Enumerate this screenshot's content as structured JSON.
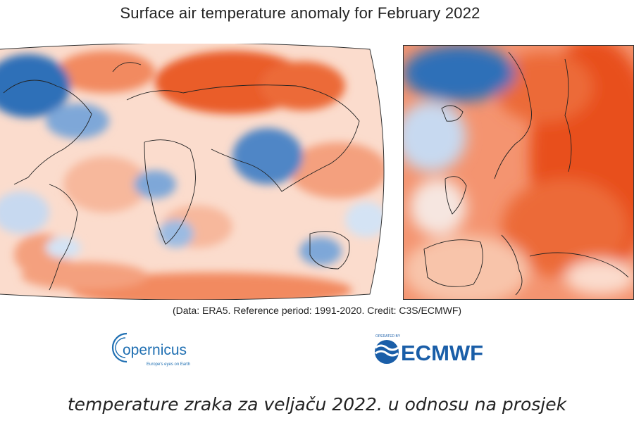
{
  "title": "Surface air temperature anomaly for February 2022",
  "credit": "(Data: ERA5.  Reference period: 1991-2020.  Credit: C3S/ECMWF)",
  "logos": {
    "copernicus_name": "opernicus",
    "copernicus_tagline": "Europe's eyes on Earth",
    "ecmwf_tagline": "OPERATED BY",
    "ecmwf_name": "ECMWF"
  },
  "caption": "temperature zraka za veljaču 2022. u odnosu na prosjek",
  "colors": {
    "warm_strong": "#e8501a",
    "warm_mid": "#f28a61",
    "warm_light": "#fbd3c0",
    "cool_strong": "#2f6fb8",
    "cool_mid": "#7ea7d8",
    "cool_light": "#d4e3f4",
    "neutral": "#f6f4f2",
    "copernicus_blue": "#1f6fb2",
    "ecmwf_blue": "#1a5ea8"
  },
  "maps": [
    {
      "region": "world"
    },
    {
      "region": "europe"
    }
  ]
}
